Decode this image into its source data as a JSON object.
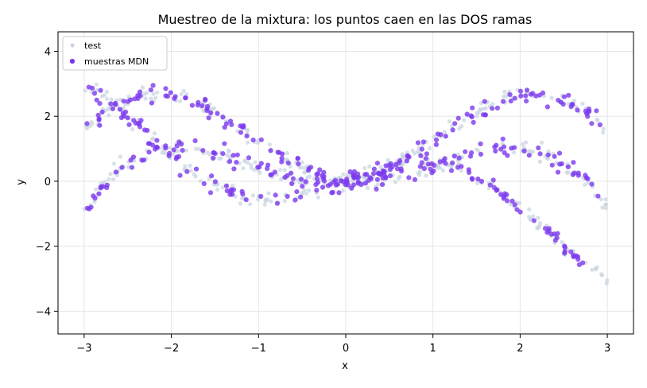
{
  "chart_data": {
    "type": "scatter",
    "title": "Muestreo de la mixtura: los puntos caen en las DOS ramas",
    "xlabel": "x",
    "ylabel": "y",
    "xlim": [
      -3.3,
      3.3
    ],
    "ylim": [
      -4.7,
      4.6
    ],
    "xticks": [
      -3,
      -2,
      -1,
      0,
      1,
      2,
      3
    ],
    "xtick_labels": [
      "−3",
      "−2",
      "−1",
      "0",
      "1",
      "2",
      "3"
    ],
    "yticks": [
      -4,
      -2,
      0,
      2,
      4
    ],
    "ytick_labels": [
      "−4",
      "−2",
      "0",
      "2",
      "4"
    ],
    "grid": true,
    "legend_position": "top-left",
    "series": [
      {
        "name": "test",
        "color": "#cbd5e1",
        "generator": "trimodal-wave",
        "x_range": [
          -3,
          3
        ],
        "points_per_branch": 170,
        "noise_sd": 0.12,
        "seed": 11
      },
      {
        "name": "muestras MDN",
        "color": "#7c3aed",
        "generator": "trimodal-wave",
        "x_range": [
          -3,
          3
        ],
        "points_per_branch": 140,
        "noise_sd": 0.13,
        "seed": 29,
        "extra_points": [
          [
            -0.55,
            0.7
          ],
          [
            -1.9,
            0.18
          ]
        ]
      }
    ]
  }
}
